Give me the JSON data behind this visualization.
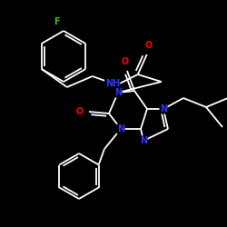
{
  "background_color": "#000000",
  "bond_color": "#ffffff",
  "atom_colors": {
    "N": "#3333ff",
    "O": "#ff0000",
    "F": "#33cc00",
    "C": "#ffffff",
    "H": "#ffffff"
  },
  "lw": 1.3,
  "fontsize": 7.0
}
